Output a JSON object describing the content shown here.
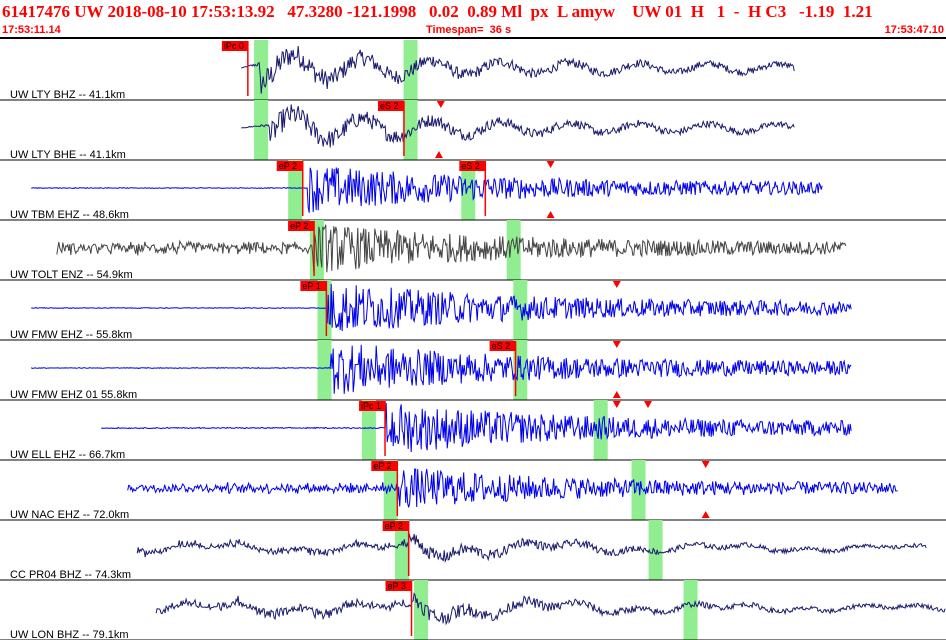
{
  "header": {
    "title": "61417476 UW 2018-08-10 17:53:13.92   47.3280 -121.1998   0.02  0.89 Ml  px  L amyw    UW 01  H   1  -  H C3   -1.19  1.21",
    "start_time": "17:53:11.14",
    "timespan_label": "Timespan=  36 s",
    "end_time": "17:53:47.10"
  },
  "colors": {
    "blue": "#0000ee",
    "navy": "#1a1a6e",
    "gray": "#444444",
    "pick": "#ff0000",
    "window": "#90ee90"
  },
  "channels": [
    {
      "label": "UW LTY BHZ -- 41.1km",
      "color": "navy",
      "signal": [
        0.255,
        0.84
      ],
      "onset": 0.275,
      "amp": 0.95,
      "pre": 0.45,
      "freq": "lowmix",
      "windows": [
        0.276,
        0.434
      ],
      "picks": [
        {
          "text": "iPc 0",
          "x": 0.262,
          "flag": "top"
        }
      ],
      "markers": []
    },
    {
      "label": "UW LTY BHE -- 41.1km",
      "color": "navy",
      "signal": [
        0.255,
        0.84
      ],
      "onset": 0.285,
      "amp": 0.9,
      "pre": 0.25,
      "freq": "lowmix",
      "windows": [
        0.276,
        0.434
      ],
      "picks": [
        {
          "text": "eS 2",
          "x": 0.427,
          "flag": "top"
        }
      ],
      "markers": [
        {
          "x": 0.466,
          "pos": "top"
        },
        {
          "x": 0.464,
          "pos": "bottom"
        }
      ]
    },
    {
      "label": "UW TBM EHZ -- 48.6km",
      "color": "blue",
      "signal": [
        0.033,
        0.87
      ],
      "onset": 0.325,
      "amp": 0.9,
      "pre": 0.02,
      "freq": "high",
      "windows": [
        0.312,
        0.495
      ],
      "picks": [
        {
          "text": "eP 2",
          "x": 0.32,
          "flag": "top"
        },
        {
          "text": "eS 2",
          "x": 0.513,
          "flag": "top"
        }
      ],
      "markers": [
        {
          "x": 0.582,
          "pos": "top"
        },
        {
          "x": 0.582,
          "pos": "bottom"
        }
      ]
    },
    {
      "label": "UW TOLT ENZ -- 54.9km",
      "color": "gray",
      "signal": [
        0.06,
        0.895
      ],
      "onset": 0.33,
      "amp": 0.95,
      "pre": 0.3,
      "freq": "high",
      "windows": [
        0.335,
        0.543
      ],
      "picks": [
        {
          "text": "eP 2",
          "x": 0.332,
          "flag": "top"
        }
      ],
      "markers": []
    },
    {
      "label": "UW FMW EHZ -- 55.8km",
      "color": "blue",
      "signal": [
        0.033,
        0.9
      ],
      "onset": 0.345,
      "amp": 1.0,
      "pre": 0.02,
      "freq": "high",
      "windows": [
        0.343,
        0.55
      ],
      "picks": [
        {
          "text": "eP 1",
          "x": 0.345,
          "flag": "top"
        }
      ],
      "markers": [
        {
          "x": 0.652,
          "pos": "top"
        }
      ]
    },
    {
      "label": "UW FMW EHZ 01 55.8km",
      "color": "blue",
      "signal": [
        0.033,
        0.9
      ],
      "onset": 0.35,
      "amp": 1.0,
      "pre": 0.02,
      "freq": "high",
      "windows": [
        0.343,
        0.55
      ],
      "picks": [
        {
          "text": "eS 2",
          "x": 0.545,
          "flag": "top"
        }
      ],
      "markers": [
        {
          "x": 0.652,
          "pos": "top"
        },
        {
          "x": 0.652,
          "pos": "bottom"
        }
      ]
    },
    {
      "label": "UW ELL EHZ -- 66.7km",
      "color": "blue",
      "signal": [
        0.107,
        0.9
      ],
      "onset": 0.407,
      "amp": 1.0,
      "pre": 0.03,
      "freq": "high",
      "windows": [
        0.39,
        0.635
      ],
      "picks": [
        {
          "text": "iPc 1",
          "x": 0.407,
          "flag": "top"
        }
      ],
      "markers": [
        {
          "x": 0.652,
          "pos": "top"
        },
        {
          "x": 0.685,
          "pos": "top"
        }
      ]
    },
    {
      "label": "UW NAC EHZ -- 72.0km",
      "color": "blue",
      "signal": [
        0.135,
        0.95
      ],
      "onset": 0.42,
      "amp": 0.8,
      "pre": 0.25,
      "freq": "high",
      "windows": [
        0.413,
        0.675
      ],
      "picks": [
        {
          "text": "eP 2",
          "x": 0.42,
          "flag": "top"
        }
      ],
      "markers": [
        {
          "x": 0.746,
          "pos": "top"
        },
        {
          "x": 0.746,
          "pos": "bottom"
        }
      ]
    },
    {
      "label": "CC PR04 BHZ -- 74.3km",
      "color": "navy",
      "signal": [
        0.145,
        0.98
      ],
      "onset": 0.432,
      "amp": 0.55,
      "pre": 0.35,
      "freq": "mid",
      "windows": [
        0.425,
        0.693
      ],
      "picks": [
        {
          "text": "eP 2",
          "x": 0.432,
          "flag": "top"
        }
      ],
      "markers": []
    },
    {
      "label": "UW LON BHZ -- 79.1km",
      "color": "navy",
      "signal": [
        0.165,
        1.0
      ],
      "onset": 0.435,
      "amp": 0.6,
      "pre": 0.45,
      "freq": "mid",
      "windows": [
        0.445,
        0.73
      ],
      "picks": [
        {
          "text": "eP 3",
          "x": 0.435,
          "flag": "top"
        }
      ],
      "markers": []
    }
  ]
}
